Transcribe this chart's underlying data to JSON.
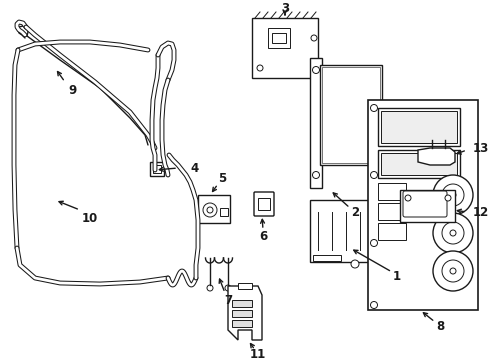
{
  "background_color": "#ffffff",
  "line_color": "#1a1a1a",
  "line_width": 1.1,
  "fig_width": 4.9,
  "fig_height": 3.6,
  "dpi": 100
}
